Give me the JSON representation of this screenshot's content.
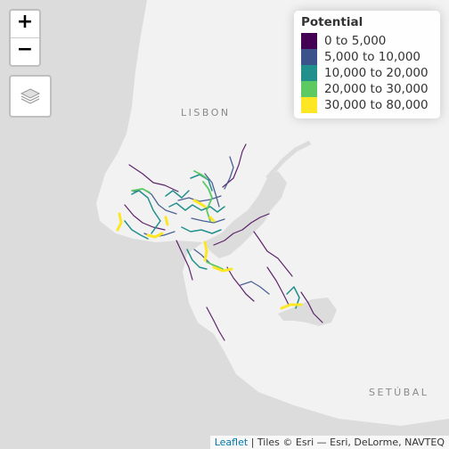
{
  "map": {
    "place_labels": [
      "LISBON",
      "SETÚBAL"
    ],
    "land_color": "#f2f2f2",
    "water_color": "#dcdcdc"
  },
  "controls": {
    "zoom_in_label": "+",
    "zoom_out_label": "−",
    "layers_icon": "layers-icon"
  },
  "legend": {
    "title": "Potential",
    "items": [
      {
        "label": "0 to 5,000",
        "color": "#440154"
      },
      {
        "label": "5,000 to 10,000",
        "color": "#3b528b"
      },
      {
        "label": "10,000 to 20,000",
        "color": "#21908d"
      },
      {
        "label": "20,000 to 30,000",
        "color": "#5dc963"
      },
      {
        "label": "30,000 to 80,000",
        "color": "#fde725"
      }
    ]
  },
  "attribution": {
    "link_text": "Leaflet",
    "text": "| Tiles © Esri — Esri, DeLorme, NAVTEQ"
  }
}
